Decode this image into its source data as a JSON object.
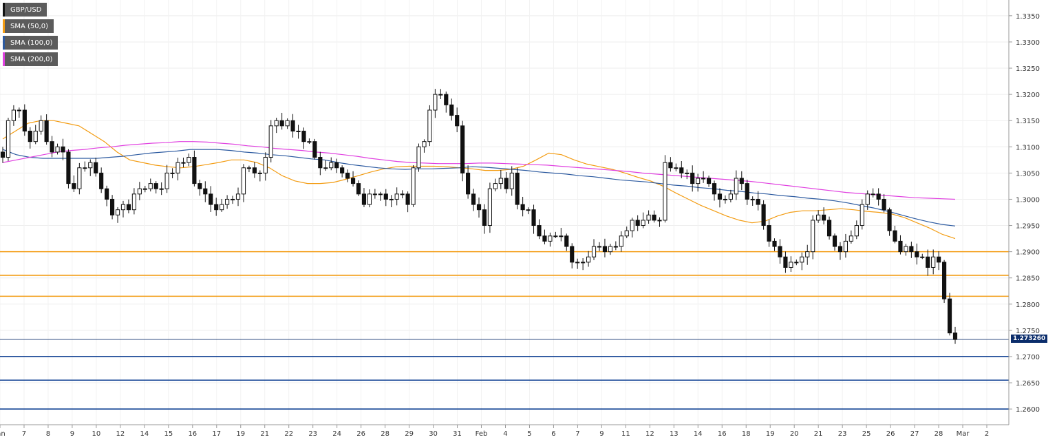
{
  "legend": {
    "items": [
      {
        "label": "GBP/USD",
        "color": "#111111"
      },
      {
        "label": "SMA (50,0)",
        "color": "#f39c12"
      },
      {
        "label": "SMA (100,0)",
        "color": "#2c5aa0"
      },
      {
        "label": "SMA (200,0)",
        "color": "#e040e0"
      }
    ]
  },
  "last_price_label": "1.273260",
  "chart_data": {
    "type": "candlestick",
    "symbol": "GBP/USD",
    "y_axis": {
      "ylim": [
        1.257,
        1.338
      ],
      "ticks": [
        "1.3350",
        "1.3300",
        "1.3250",
        "1.3200",
        "1.3150",
        "1.3100",
        "1.3050",
        "1.3000",
        "1.2950",
        "1.2900",
        "1.2850",
        "1.2800",
        "1.2750",
        "1.2700",
        "1.2650",
        "1.2600"
      ]
    },
    "x_axis": {
      "ticks": [
        "Jan",
        "7",
        "8",
        "9",
        "10",
        "12",
        "14",
        "15",
        "16",
        "17",
        "19",
        "21",
        "22",
        "23",
        "24",
        "26",
        "28",
        "29",
        "30",
        "31",
        "Feb",
        "4",
        "5",
        "6",
        "7",
        "9",
        "11",
        "12",
        "13",
        "14",
        "16",
        "18",
        "19",
        "20",
        "21",
        "23",
        "25",
        "26",
        "27",
        "28",
        "Mar",
        "2"
      ]
    },
    "grid": true,
    "legend_position": "top-left",
    "horizontal_levels": [
      {
        "value": 1.29,
        "color": "#f39c12"
      },
      {
        "value": 1.2855,
        "color": "#f39c12"
      },
      {
        "value": 1.2815,
        "color": "#f39c12"
      },
      {
        "value": 1.27,
        "color": "#0b3d91"
      },
      {
        "value": 1.2655,
        "color": "#0b3d91"
      },
      {
        "value": 1.26,
        "color": "#0b3d91"
      }
    ],
    "last_price": 1.27326,
    "close_series": [
      1.308,
      1.315,
      1.317,
      1.317,
      1.313,
      1.311,
      1.313,
      1.315,
      1.311,
      1.309,
      1.31,
      1.309,
      1.303,
      1.302,
      1.306,
      1.306,
      1.307,
      1.305,
      1.302,
      1.3,
      1.297,
      1.298,
      1.299,
      1.298,
      1.301,
      1.302,
      1.302,
      1.303,
      1.302,
      1.302,
      1.305,
      1.305,
      1.307,
      1.307,
      1.308,
      1.303,
      1.302,
      1.301,
      1.299,
      1.298,
      1.299,
      1.3,
      1.3,
      1.301,
      1.306,
      1.306,
      1.305,
      1.305,
      1.308,
      1.314,
      1.315,
      1.314,
      1.315,
      1.313,
      1.313,
      1.311,
      1.311,
      1.308,
      1.306,
      1.306,
      1.307,
      1.306,
      1.305,
      1.304,
      1.303,
      1.301,
      1.299,
      1.301,
      1.301,
      1.301,
      1.3,
      1.3,
      1.301,
      1.301,
      1.299,
      1.306,
      1.31,
      1.311,
      1.317,
      1.32,
      1.32,
      1.318,
      1.316,
      1.314,
      1.305,
      1.301,
      1.299,
      1.298,
      1.295,
      1.302,
      1.303,
      1.304,
      1.302,
      1.305,
      1.299,
      1.298,
      1.298,
      1.295,
      1.293,
      1.292,
      1.293,
      1.293,
      1.293,
      1.291,
      1.288,
      1.288,
      1.288,
      1.289,
      1.291,
      1.291,
      1.29,
      1.291,
      1.291,
      1.293,
      1.294,
      1.296,
      1.295,
      1.296,
      1.297,
      1.296,
      1.296,
      1.307,
      1.306,
      1.306,
      1.305,
      1.305,
      1.303,
      1.304,
      1.304,
      1.303,
      1.301,
      1.3,
      1.3,
      1.301,
      1.304,
      1.303,
      1.3,
      1.3,
      1.299,
      1.295,
      1.292,
      1.291,
      1.289,
      1.287,
      1.288,
      1.288,
      1.289,
      1.29,
      1.296,
      1.297,
      1.296,
      1.293,
      1.291,
      1.29,
      1.292,
      1.293,
      1.295,
      1.299,
      1.301,
      1.301,
      1.3,
      1.298,
      1.294,
      1.292,
      1.29,
      1.291,
      1.29,
      1.289,
      1.289,
      1.287,
      1.289,
      1.288,
      1.281,
      1.2745,
      1.27326
    ],
    "series": [
      {
        "name": "SMA (50,0)",
        "values": [
          1.3115,
          1.313,
          1.3145,
          1.315,
          1.315,
          1.3145,
          1.314,
          1.3125,
          1.311,
          1.309,
          1.3075,
          1.307,
          1.3065,
          1.3062,
          1.306,
          1.3062,
          1.3066,
          1.307,
          1.3075,
          1.3075,
          1.307,
          1.306,
          1.3045,
          1.3035,
          1.303,
          1.303,
          1.3032,
          1.3038,
          1.3045,
          1.3052,
          1.3058,
          1.3062,
          1.3063,
          1.3063,
          1.3063,
          1.3062,
          1.306,
          1.3058,
          1.3055,
          1.3055,
          1.3057,
          1.3063,
          1.3075,
          1.3088,
          1.3085,
          1.3075,
          1.3067,
          1.3062,
          1.3057,
          1.305,
          1.3042,
          1.3035,
          1.3025,
          1.3012,
          1.3,
          1.2988,
          1.2978,
          1.2968,
          1.296,
          1.2955,
          1.2958,
          1.2968,
          1.2975,
          1.2978,
          1.2978,
          1.298,
          1.2982,
          1.298,
          1.2977,
          1.2975,
          1.2972,
          1.2965,
          1.2955,
          1.2945,
          1.2933,
          1.2925
        ]
      },
      {
        "name": "SMA (100,0)",
        "values": [
          1.3095,
          1.3085,
          1.308,
          1.3078,
          1.3078,
          1.3078,
          1.3078,
          1.3078,
          1.308,
          1.3082,
          1.3085,
          1.3088,
          1.309,
          1.3092,
          1.3095,
          1.3095,
          1.3095,
          1.3093,
          1.309,
          1.3088,
          1.3085,
          1.3083,
          1.308,
          1.3077,
          1.3075,
          1.307,
          1.3066,
          1.3063,
          1.306,
          1.3058,
          1.3057,
          1.3058,
          1.3058,
          1.3059,
          1.306,
          1.3062,
          1.3061,
          1.3059,
          1.3057,
          1.3055,
          1.3052,
          1.305,
          1.3048,
          1.3045,
          1.3043,
          1.304,
          1.3037,
          1.3035,
          1.3033,
          1.303,
          1.3027,
          1.3025,
          1.3022,
          1.302,
          1.3017,
          1.3015,
          1.3012,
          1.301,
          1.3007,
          1.3005,
          1.3002,
          1.3,
          1.2997,
          1.2993,
          1.2988,
          1.2983,
          1.2977,
          1.297,
          1.2963,
          1.2957,
          1.2952,
          1.2949
        ]
      },
      {
        "name": "SMA (200,0)",
        "values": [
          1.307,
          1.3075,
          1.308,
          1.3085,
          1.309,
          1.3093,
          1.3095,
          1.3098,
          1.31,
          1.3103,
          1.3105,
          1.3107,
          1.3108,
          1.311,
          1.311,
          1.3109,
          1.3107,
          1.3105,
          1.3102,
          1.31,
          1.3097,
          1.3095,
          1.3093,
          1.309,
          1.3088,
          1.3085,
          1.3082,
          1.3078,
          1.3075,
          1.3072,
          1.307,
          1.3069,
          1.3068,
          1.3068,
          1.3068,
          1.3069,
          1.3069,
          1.3068,
          1.3067,
          1.3066,
          1.3065,
          1.3063,
          1.3061,
          1.3059,
          1.3057,
          1.3055,
          1.3053,
          1.305,
          1.3048,
          1.3046,
          1.3044,
          1.3042,
          1.304,
          1.3038,
          1.3036,
          1.3034,
          1.3031,
          1.3028,
          1.3025,
          1.3022,
          1.3019,
          1.3016,
          1.3013,
          1.3011,
          1.3009,
          1.3007,
          1.3005,
          1.3003,
          1.3002,
          1.3001,
          1.3
        ]
      }
    ]
  }
}
